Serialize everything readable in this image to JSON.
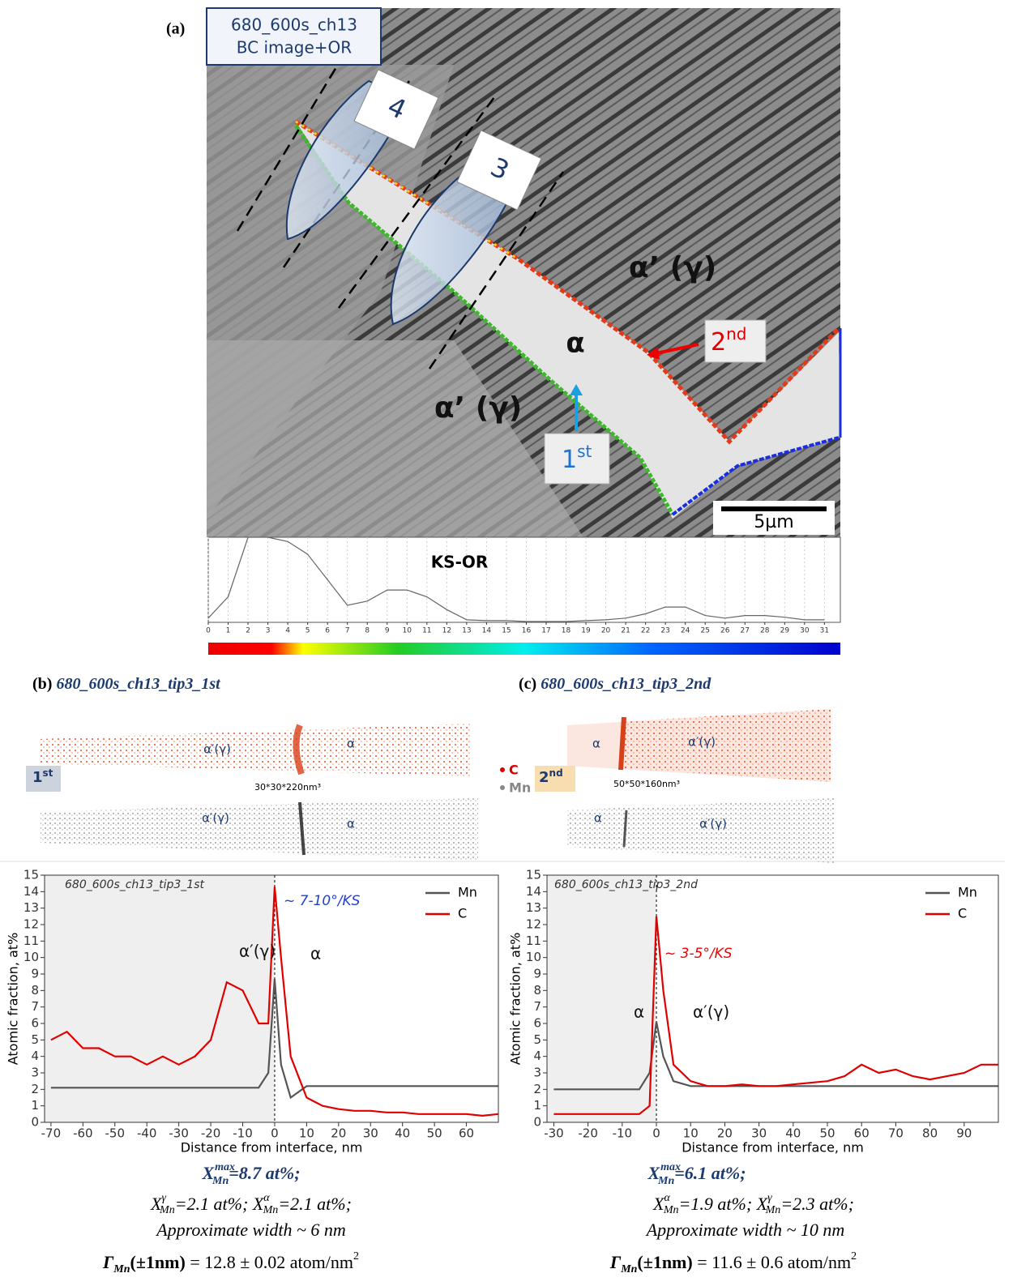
{
  "panel_a": {
    "label": "(a)",
    "box": [
      "680_600s_ch13",
      "BC image+OR"
    ],
    "tip_labels": [
      "4",
      "3"
    ],
    "phase_labels": [
      "α’ (γ)",
      "α’ (γ)",
      "α"
    ],
    "arrow_labels": [
      [
        "2",
        "nd"
      ],
      [
        "1",
        "st"
      ]
    ],
    "scale_bar": "5µm"
  },
  "panel_b": {
    "label": "(b)",
    "title": "680_600s_ch13_tip3_1st",
    "map_labels": [
      "α′(γ)",
      "α",
      "α′(γ)",
      "α"
    ],
    "badge": [
      "1",
      "st"
    ],
    "volume": "30*30*220nm³",
    "legend": [
      "C",
      "Mn"
    ]
  },
  "panel_c": {
    "label": "(c)",
    "title": "680_600s_ch13_tip3_2nd",
    "map_labels": [
      "α",
      "α′(γ)",
      "α",
      "α′(γ)"
    ],
    "badge": [
      "2",
      "nd"
    ],
    "volume": "50*50*160nm³"
  },
  "chart_data": [
    {
      "type": "line",
      "title": "KS-OR",
      "x": [
        0,
        1,
        2,
        3,
        4,
        5,
        6,
        7,
        8,
        9,
        10,
        11,
        12,
        13,
        14,
        15,
        16,
        17,
        18,
        19,
        20,
        21,
        22,
        23,
        24,
        25,
        26,
        27,
        28,
        29,
        30,
        31
      ],
      "values": [
        5,
        30,
        100,
        100,
        95,
        80,
        50,
        20,
        25,
        38,
        38,
        30,
        15,
        3,
        2,
        2,
        1,
        1,
        1,
        2,
        3,
        5,
        10,
        18,
        18,
        8,
        5,
        8,
        8,
        6,
        3,
        3
      ],
      "color": "#666666",
      "xlim": [
        0,
        31.8
      ],
      "xticks": [
        0,
        1,
        2,
        3,
        4,
        5,
        6,
        7,
        8,
        9,
        10,
        11,
        12,
        13,
        14,
        15,
        16,
        17,
        18,
        19,
        20,
        21,
        22,
        23,
        24,
        25,
        26,
        27,
        28,
        29,
        30,
        31
      ],
      "ylim": [
        0,
        100
      ],
      "grid": true
    },
    {
      "type": "line",
      "title": "680_600s_ch13_tip3_1st",
      "xlabel": "Distance from interface, nm",
      "ylabel": "Atomic fraction, at%",
      "x": [
        -70,
        -65,
        -60,
        -55,
        -50,
        -45,
        -40,
        -35,
        -30,
        -25,
        -20,
        -15,
        -10,
        -5,
        -2,
        0,
        2,
        5,
        10,
        15,
        20,
        25,
        30,
        35,
        40,
        45,
        50,
        55,
        60,
        65,
        70
      ],
      "series": [
        {
          "name": "Mn",
          "color": "#555555",
          "values": [
            2.1,
            2.1,
            2.1,
            2.1,
            2.1,
            2.1,
            2.1,
            2.1,
            2.1,
            2.1,
            2.1,
            2.1,
            2.1,
            2.1,
            3,
            8.7,
            3.5,
            1.5,
            2.2,
            2.2,
            2.2,
            2.2,
            2.2,
            2.2,
            2.2,
            2.2,
            2.2,
            2.2,
            2.2,
            2.2,
            2.2
          ]
        },
        {
          "name": "C",
          "color": "#e00000",
          "values": [
            5,
            5.5,
            4.5,
            4.5,
            4,
            4,
            3.5,
            4,
            3.5,
            4,
            5,
            8.5,
            8,
            6,
            6,
            14.3,
            10,
            4,
            1.5,
            1,
            0.8,
            0.7,
            0.7,
            0.6,
            0.6,
            0.5,
            0.5,
            0.5,
            0.5,
            0.4,
            0.5
          ]
        }
      ],
      "xlim": [
        -72,
        70
      ],
      "xticks": [
        -70,
        -60,
        -50,
        -40,
        -30,
        -20,
        -10,
        0,
        10,
        20,
        30,
        40,
        50,
        60
      ],
      "ylim": [
        0,
        15
      ],
      "yticks": [
        0,
        1,
        2,
        3,
        4,
        5,
        6,
        7,
        8,
        9,
        10,
        11,
        12,
        13,
        14,
        15
      ],
      "annotations": [
        "~ 7-10°/KS",
        "α′(γ)",
        "α"
      ],
      "legend": "upper right"
    },
    {
      "type": "line",
      "title": "680_600s_ch13_tip3_2nd",
      "xlabel": "Distance from interface, nm",
      "ylabel": "Atomic fraction, at%",
      "x": [
        -30,
        -25,
        -20,
        -15,
        -10,
        -5,
        -2,
        0,
        2,
        5,
        10,
        15,
        20,
        25,
        30,
        35,
        40,
        45,
        50,
        55,
        60,
        65,
        70,
        75,
        80,
        85,
        90,
        95,
        100
      ],
      "series": [
        {
          "name": "Mn",
          "color": "#555555",
          "values": [
            2,
            2,
            2,
            2,
            2,
            2,
            3,
            6.1,
            4,
            2.5,
            2.2,
            2.2,
            2.2,
            2.2,
            2.2,
            2.2,
            2.2,
            2.2,
            2.2,
            2.2,
            2.2,
            2.2,
            2.2,
            2.2,
            2.2,
            2.2,
            2.2,
            2.2,
            2.2
          ]
        },
        {
          "name": "C",
          "color": "#e00000",
          "values": [
            0.5,
            0.5,
            0.5,
            0.5,
            0.5,
            0.5,
            1,
            12.5,
            8,
            3.5,
            2.5,
            2.2,
            2.2,
            2.3,
            2.2,
            2.2,
            2.3,
            2.4,
            2.5,
            2.8,
            3.5,
            3,
            3.2,
            2.8,
            2.6,
            2.8,
            3,
            3.5,
            3.5
          ]
        }
      ],
      "xlim": [
        -32,
        100
      ],
      "xticks": [
        -30,
        -20,
        -10,
        0,
        10,
        20,
        30,
        40,
        50,
        60,
        70,
        80,
        90
      ],
      "ylim": [
        0,
        15
      ],
      "yticks": [
        0,
        1,
        2,
        3,
        4,
        5,
        6,
        7,
        8,
        9,
        10,
        11,
        12,
        13,
        14,
        15
      ],
      "annotations": [
        "~ 3-5°/KS",
        "α",
        "α′(γ)"
      ],
      "legend": "upper right"
    }
  ],
  "summary_b": {
    "line1": [
      "X",
      "max",
      "Mn",
      "=8.7 at%;"
    ],
    "line2": [
      "X",
      "γ",
      "Mn",
      "=2.1 at%; ",
      "X",
      "α",
      "Mn",
      "=2.1 at%;"
    ],
    "line3": "Approximate width ~ 6 nm",
    "line4": [
      "Γ",
      "Mn",
      "(±1nm)",
      " = 12.8 ± 0.02 atom/nm",
      "2"
    ]
  },
  "summary_c": {
    "line1": [
      "X",
      "max",
      "Mn",
      "=6.1 at%;"
    ],
    "line2": [
      "X",
      "α",
      "Mn",
      "=1.9 at%; ",
      "X",
      "γ",
      "Mn",
      "=2.3 at%;"
    ],
    "line3": "Approximate width ~ 10 nm",
    "line4": [
      "Γ",
      "Mn",
      "(±1nm)",
      " = 11.6 ± 0.6 atom/nm",
      "2"
    ]
  }
}
